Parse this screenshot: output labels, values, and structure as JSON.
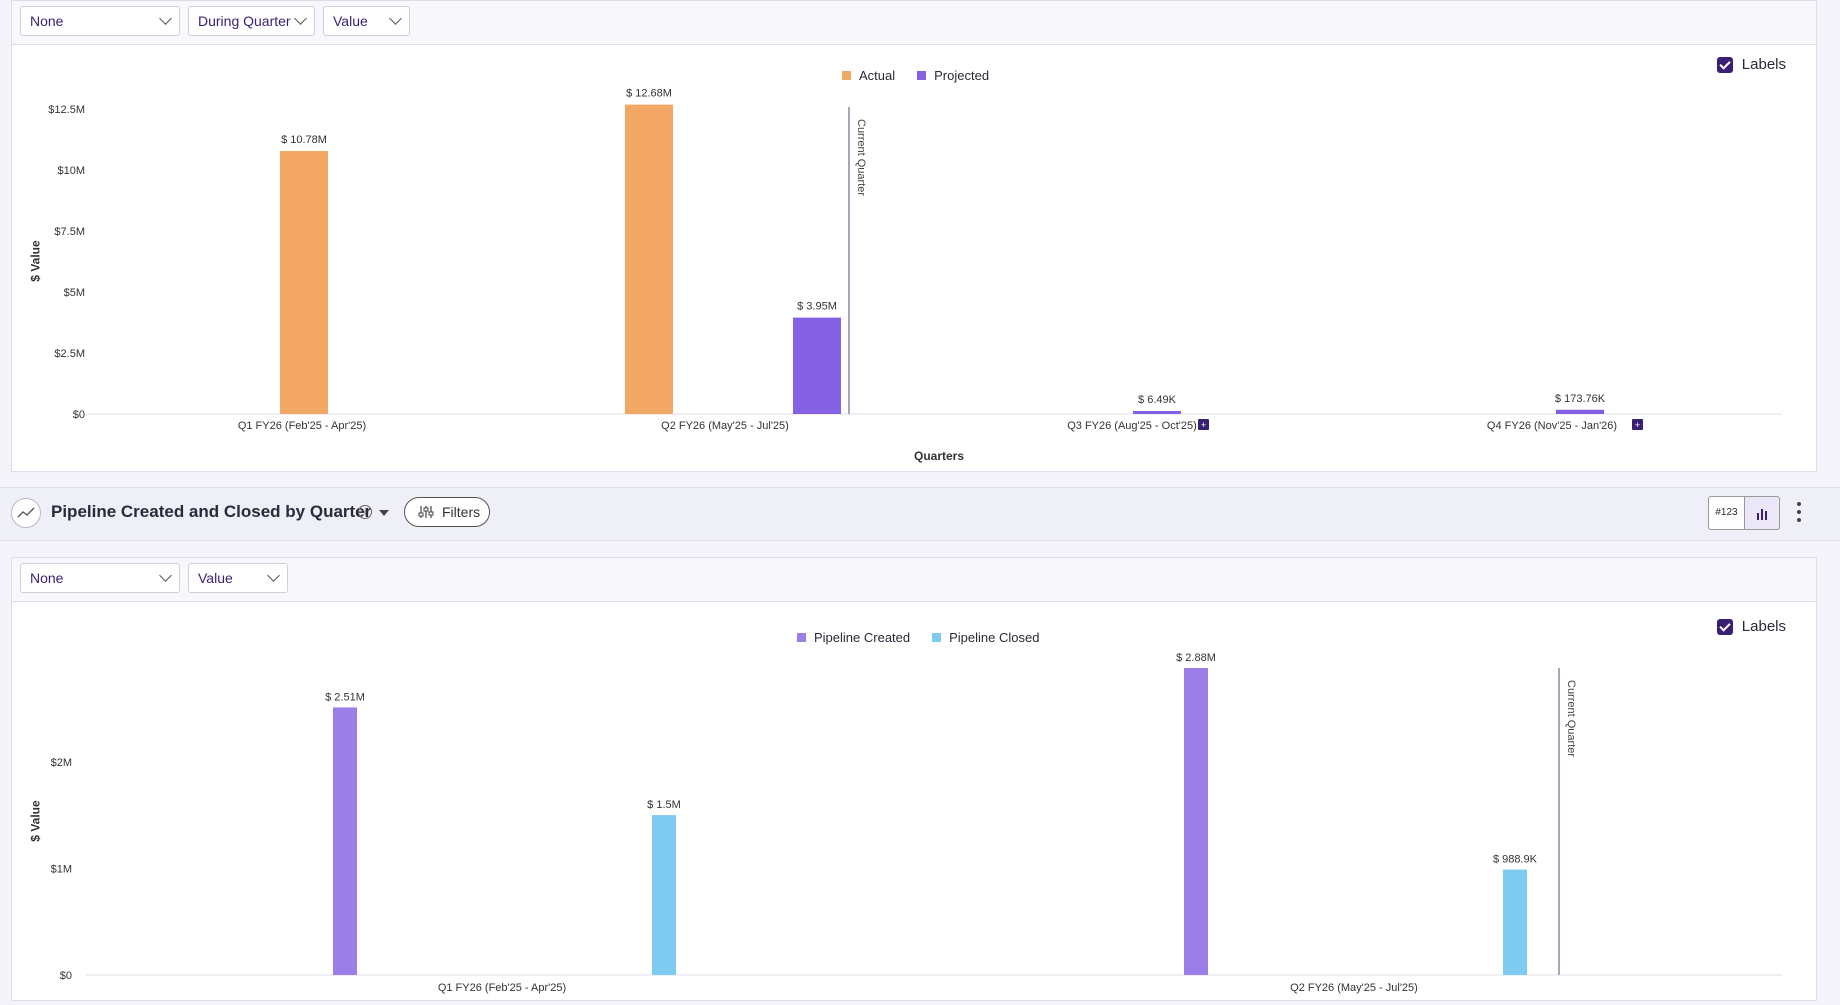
{
  "top_toolbar": {
    "dropdowns": [
      {
        "value": "None"
      },
      {
        "value": "During Quarter"
      },
      {
        "value": "Value"
      }
    ]
  },
  "chart1": {
    "labels_toggle": "Labels",
    "current_quarter_label": "Current Quarter",
    "y_axis_label": "$ Value",
    "x_axis_title": "Quarters",
    "colors": {
      "actual": "#f2a864",
      "projected": "#8460e3"
    }
  },
  "section2": {
    "title": "Pipeline Created and Closed by Quarter",
    "filters_label": "Filters",
    "view_number_label": "#123",
    "dropdowns": [
      {
        "value": "None"
      },
      {
        "value": "Value"
      }
    ]
  },
  "chart2": {
    "labels_toggle": "Labels",
    "current_quarter_label": "Current Quarter",
    "y_axis_label": "$ Value",
    "colors": {
      "created": "#9b7ee8",
      "closed": "#7ecbf2"
    }
  },
  "chart_data": [
    {
      "type": "bar",
      "categories": [
        "Q1 FY26 (Feb'25 - Apr'25)",
        "Q2 FY26 (May'25 - Jul'25)",
        "Q3 FY26 (Aug'25 - Oct'25)",
        "Q4 FY26 (Nov'25 - Jan'26)"
      ],
      "series": [
        {
          "name": "Actual",
          "values": [
            10.78,
            12.68,
            0,
            0
          ],
          "labels": [
            "$ 10.78M",
            "$ 12.68M",
            "",
            ""
          ]
        },
        {
          "name": "Projected",
          "values": [
            0,
            3.95,
            0.00649,
            0.17376
          ],
          "labels": [
            "",
            "$ 3.95M",
            "$ 6.49K",
            "$ 173.76K"
          ]
        }
      ],
      "ylabel": "$ Value",
      "xlabel": "Quarters",
      "ylim": [
        0,
        12.5
      ],
      "yticks": [
        "$0",
        "$2.5M",
        "$5M",
        "$7.5M",
        "$10M",
        "$12.5M"
      ],
      "legend": "top-center",
      "annotation": "Current Quarter"
    },
    {
      "type": "bar",
      "categories": [
        "Q1 FY26 (Feb'25 - Apr'25)",
        "Q2 FY26 (May'25 - Jul'25)"
      ],
      "series": [
        {
          "name": "Pipeline Created",
          "values": [
            2.51,
            2.88
          ],
          "labels": [
            "$ 2.51M",
            "$ 2.88M"
          ]
        },
        {
          "name": "Pipeline Closed",
          "values": [
            1.5,
            0.9889
          ],
          "labels": [
            "$ 1.5M",
            "$ 988.9K"
          ]
        }
      ],
      "ylabel": "$ Value",
      "ylim": [
        0,
        2.88
      ],
      "yticks": [
        "$0",
        "$1M",
        "$2M"
      ],
      "legend": "top-center",
      "annotation": "Current Quarter"
    }
  ]
}
